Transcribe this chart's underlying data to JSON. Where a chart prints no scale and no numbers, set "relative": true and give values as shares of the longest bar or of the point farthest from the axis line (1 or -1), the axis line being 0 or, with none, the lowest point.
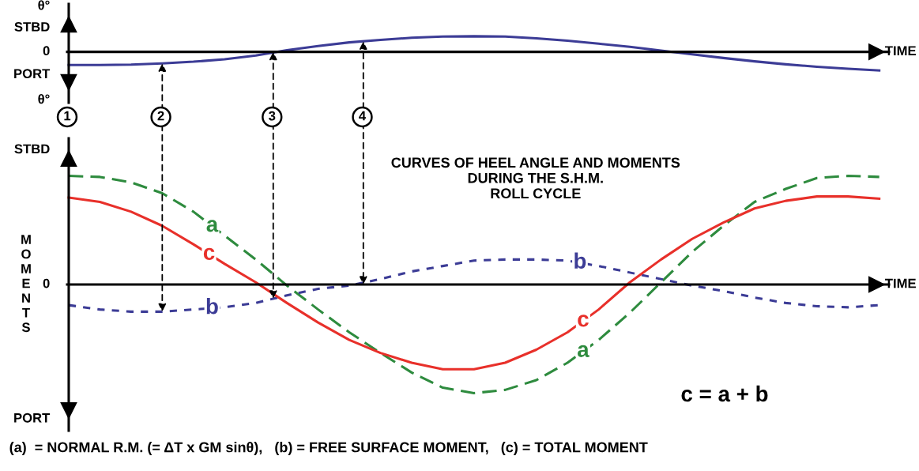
{
  "chart_data": [
    {
      "type": "line",
      "relative": true,
      "xlabel": "TIME",
      "categories": [
        null,
        null,
        null,
        null,
        null,
        null,
        null,
        null,
        null,
        null,
        null,
        null,
        null,
        null,
        null,
        null,
        null,
        null,
        null,
        null,
        null,
        null,
        null,
        null,
        null,
        null,
        null
      ],
      "annotations": [
        "θ°",
        "STBD",
        "0",
        "PORT",
        "θ°"
      ],
      "series": [
        {
          "color": "#3c3c96",
          "line_style": "solid",
          "values": [
            -0.71,
            -0.71,
            -0.69,
            -0.62,
            -0.53,
            -0.4,
            -0.2,
            0.09,
            0.31,
            0.51,
            0.64,
            0.76,
            0.82,
            0.84,
            0.82,
            0.73,
            0.6,
            0.44,
            0.27,
            0.07,
            -0.13,
            -0.33,
            -0.51,
            -0.67,
            -0.8,
            -0.91,
            -1
          ]
        }
      ]
    },
    {
      "type": "line",
      "relative": true,
      "xlabel": "TIME",
      "ylabel": "MOMENTS",
      "title": "CURVES OF HEEL ANGLE AND MOMENTS DURING THE S.H.M. ROLL CYCLE",
      "categories": [
        null,
        null,
        null,
        null,
        null,
        null,
        null,
        null,
        null,
        null,
        null,
        null,
        null,
        null,
        null,
        null,
        null,
        null,
        null,
        null,
        null,
        null,
        null,
        null,
        null,
        null,
        null
      ],
      "annotations": [
        "STBD",
        "0",
        "PORT",
        "1",
        "2",
        "3",
        "4",
        "c = a + b",
        "(a)  = NORMAL R.M. (= ΔT x GM sinθ),   (b) = FREE SURFACE MOMENT,   (c) = TOTAL MOMENT"
      ],
      "series": [
        {
          "name": "a",
          "color": "#2e8b3e",
          "line_style": "dashed",
          "values": [
            1.0,
            0.99,
            0.94,
            0.84,
            0.67,
            0.45,
            0.23,
            -0.01,
            -0.23,
            -0.44,
            -0.63,
            -0.81,
            -0.95,
            -1.0,
            -0.97,
            -0.88,
            -0.72,
            -0.51,
            -0.26,
            0.02,
            0.3,
            0.54,
            0.76,
            0.88,
            0.98,
            1.0,
            0.99
          ]
        },
        {
          "name": "b",
          "color": "#3c3c96",
          "line_style": "dotted",
          "values": [
            -0.19,
            -0.23,
            -0.25,
            -0.25,
            -0.23,
            -0.21,
            -0.17,
            -0.1,
            -0.04,
            -0.01,
            0.05,
            0.12,
            0.17,
            0.22,
            0.23,
            0.23,
            0.22,
            0.17,
            0.11,
            0.05,
            -0.01,
            -0.06,
            -0.12,
            -0.17,
            -0.2,
            -0.21,
            -0.19
          ]
        },
        {
          "name": "c",
          "color": "#e8302a",
          "line_style": "solid",
          "values": [
            0.8,
            0.76,
            0.67,
            0.54,
            0.37,
            0.19,
            0.02,
            -0.17,
            -0.35,
            -0.51,
            -0.63,
            -0.72,
            -0.78,
            -0.78,
            -0.72,
            -0.6,
            -0.44,
            -0.23,
            0.02,
            0.23,
            0.42,
            0.57,
            0.7,
            0.77,
            0.81,
            0.81,
            0.79
          ]
        }
      ]
    }
  ]
}
